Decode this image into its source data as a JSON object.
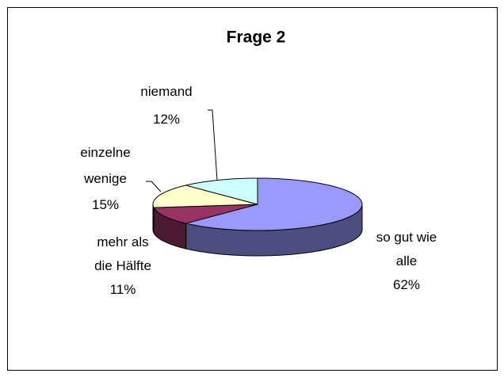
{
  "chart_data": {
    "type": "pie3d",
    "title": "Frage 2",
    "categories": [
      "so gut wie alle",
      "mehr als die Hälfte",
      "einzelne wenige",
      "niemand"
    ],
    "values": [
      62,
      11,
      15,
      12
    ],
    "value_labels": [
      "62%",
      "11%",
      "15%",
      "12%"
    ],
    "colors": [
      "#9999ff",
      "#993366",
      "#ffffcc",
      "#ccffff"
    ]
  }
}
